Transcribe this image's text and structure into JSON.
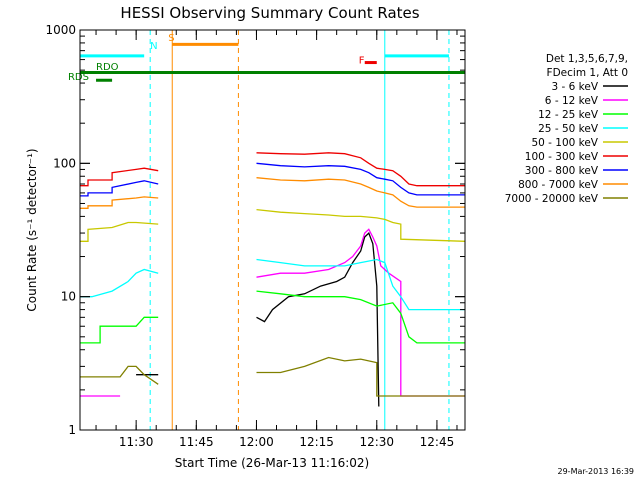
{
  "chart_data": {
    "type": "line",
    "title": "HESSI Observing Summary Count Rates",
    "xlabel": "Start Time (26-Mar-13 11:16:02)",
    "ylabel": "Count Rate (s⁻¹ detector⁻¹)",
    "yscale": "log",
    "ylim": [
      1,
      1000
    ],
    "xlim_minutes": [
      0,
      96
    ],
    "x_ticks": [
      {
        "label": "11:30",
        "min": 14
      },
      {
        "label": "11:45",
        "min": 29
      },
      {
        "label": "12:00",
        "min": 44
      },
      {
        "label": "12:15",
        "min": 59
      },
      {
        "label": "12:30",
        "min": 74
      },
      {
        "label": "12:45",
        "min": 89
      }
    ],
    "y_ticks": [
      {
        "label": "1",
        "v": 1
      },
      {
        "label": "10",
        "v": 10
      },
      {
        "label": "100",
        "v": 100
      },
      {
        "label": "1000",
        "v": 1000
      }
    ],
    "legend_header": [
      "Det 1,3,5,6,7,9,",
      "FDecim 1, Att 0"
    ],
    "series": [
      {
        "name": "3 - 6 keV",
        "color": "#000000",
        "x": [
          14,
          19.5,
          19.5,
          44,
          44,
          46,
          48,
          52,
          56,
          60,
          64,
          66,
          68,
          70,
          71,
          72,
          73,
          74,
          74.5
        ],
        "y": [
          2.6,
          2.6,
          null,
          null,
          7,
          6.5,
          8,
          10,
          10.5,
          12,
          13,
          14,
          18,
          22,
          28,
          30,
          25,
          12,
          1.5
        ]
      },
      {
        "name": "6 - 12 keV",
        "color": "#ff00ff",
        "x": [
          0,
          10,
          10,
          44,
          44,
          50,
          56,
          62,
          66,
          68,
          70,
          71,
          72,
          73,
          74,
          75,
          77,
          80,
          80,
          96
        ],
        "y": [
          1.8,
          1.8,
          null,
          null,
          14,
          15,
          15,
          16,
          18,
          20,
          24,
          30,
          32,
          28,
          24,
          17,
          15,
          13,
          1.8,
          1.8
        ]
      },
      {
        "name": "12 - 25 keV",
        "color": "#00ff00",
        "x": [
          0,
          5,
          5,
          14,
          16,
          19.5,
          19.5,
          44,
          44,
          50,
          56,
          62,
          66,
          70,
          74,
          78,
          80,
          82,
          84,
          96
        ],
        "y": [
          4.5,
          4.5,
          6,
          6,
          7,
          7,
          null,
          null,
          11,
          10.5,
          10,
          10,
          10,
          9.5,
          8.5,
          9,
          7.5,
          5,
          4.5,
          4.5
        ]
      },
      {
        "name": "25 - 50 keV",
        "color": "#00ffff",
        "x": [
          0,
          3,
          8,
          12,
          14,
          16,
          19.5,
          19.5,
          44,
          44,
          50,
          56,
          62,
          66,
          70,
          74,
          76,
          78,
          80,
          82,
          96
        ],
        "y": [
          10,
          10,
          11,
          13,
          15,
          16,
          15,
          null,
          null,
          19,
          18,
          17,
          17,
          17,
          18,
          19,
          18,
          12,
          10,
          8,
          8
        ]
      },
      {
        "name": "50 - 100 keV",
        "color": "#c8c800",
        "x": [
          0,
          2,
          2,
          8,
          12,
          14,
          19.5,
          19.5,
          44,
          44,
          50,
          56,
          62,
          66,
          70,
          74,
          76,
          78,
          80,
          80,
          96
        ],
        "y": [
          26,
          26,
          32,
          33,
          36,
          36,
          35,
          null,
          null,
          45,
          43,
          42,
          41,
          40,
          40,
          39,
          38,
          36,
          35,
          27,
          26
        ]
      },
      {
        "name": "100 - 300 keV",
        "color": "#ee0000",
        "x": [
          0,
          2,
          2,
          8,
          8,
          14,
          16,
          19.5,
          19.5,
          44,
          44,
          50,
          56,
          62,
          66,
          70,
          72,
          74,
          76,
          78,
          80,
          82,
          84,
          96
        ],
        "y": [
          68,
          68,
          75,
          75,
          85,
          90,
          92,
          88,
          null,
          null,
          120,
          118,
          117,
          120,
          118,
          110,
          100,
          92,
          90,
          88,
          80,
          70,
          68,
          68
        ]
      },
      {
        "name": "300 - 800 keV",
        "color": "#0000ff",
        "x": [
          0,
          2,
          2,
          8,
          8,
          14,
          16,
          19.5,
          19.5,
          44,
          44,
          50,
          56,
          62,
          66,
          70,
          72,
          74,
          76,
          78,
          80,
          82,
          84,
          96
        ],
        "y": [
          57,
          57,
          60,
          60,
          66,
          72,
          74,
          70,
          null,
          null,
          100,
          96,
          94,
          96,
          95,
          90,
          85,
          78,
          76,
          74,
          66,
          60,
          58,
          58
        ]
      },
      {
        "name": "800 - 7000 keV",
        "color": "#ff8c00",
        "x": [
          0,
          2,
          2,
          8,
          8,
          14,
          16,
          19.5,
          19.5,
          44,
          44,
          50,
          56,
          62,
          66,
          70,
          72,
          74,
          76,
          78,
          80,
          82,
          84,
          96
        ],
        "y": [
          46,
          46,
          48,
          48,
          53,
          55,
          56,
          55,
          null,
          null,
          78,
          75,
          74,
          76,
          75,
          70,
          66,
          62,
          60,
          58,
          52,
          48,
          47,
          47
        ]
      },
      {
        "name": "7000 - 20000 keV",
        "color": "#808000",
        "x": [
          0,
          10,
          12,
          14,
          16,
          19.5,
          19.5,
          44,
          44,
          50,
          56,
          62,
          66,
          70,
          74,
          74,
          96
        ],
        "y": [
          2.5,
          2.5,
          3,
          3,
          2.6,
          2.2,
          null,
          null,
          2.7,
          2.7,
          3,
          3.5,
          3.3,
          3.4,
          3.2,
          1.8,
          1.8
        ]
      }
    ],
    "annotations": [
      {
        "text": "S",
        "color": "#ff8c00",
        "x": 22,
        "y": 830
      },
      {
        "text": "N",
        "color": "#00ffff",
        "x": 17.5,
        "y": 720
      },
      {
        "text": "F",
        "color": "#ee0000",
        "x": 69.5,
        "y": 560
      },
      {
        "text": "RDO",
        "color": "#008000",
        "x": 4,
        "y": 500
      },
      {
        "text": "RDS",
        "color": "#008000",
        "x": -3,
        "y": 420
      }
    ],
    "flag_bars": [
      {
        "color": "#00ffff",
        "y": 640,
        "segments": [
          [
            0,
            16
          ],
          [
            76,
            92
          ]
        ]
      },
      {
        "color": "#ff8c00",
        "y": 780,
        "segments": [
          [
            23,
            39.5
          ]
        ]
      },
      {
        "color": "#ee0000",
        "y": 570,
        "segments": [
          [
            71,
            74
          ]
        ]
      },
      {
        "color": "#008000",
        "y": 480,
        "segments": [
          [
            0,
            96
          ]
        ]
      },
      {
        "color": "#008000",
        "y": 420,
        "segments": [
          [
            4,
            8
          ]
        ]
      }
    ],
    "vlines": [
      {
        "color": "#00ffff",
        "dashed": false,
        "x": 0
      },
      {
        "color": "#00ffff",
        "dashed": true,
        "x": 17.5
      },
      {
        "color": "#ff8c00",
        "dashed": false,
        "x": 23
      },
      {
        "color": "#ff8c00",
        "dashed": true,
        "x": 39.5
      },
      {
        "color": "#00ffff",
        "dashed": false,
        "x": 76
      },
      {
        "color": "#00ffff",
        "dashed": true,
        "x": 92
      }
    ],
    "timestamp": "29-Mar-2013 16:39"
  }
}
